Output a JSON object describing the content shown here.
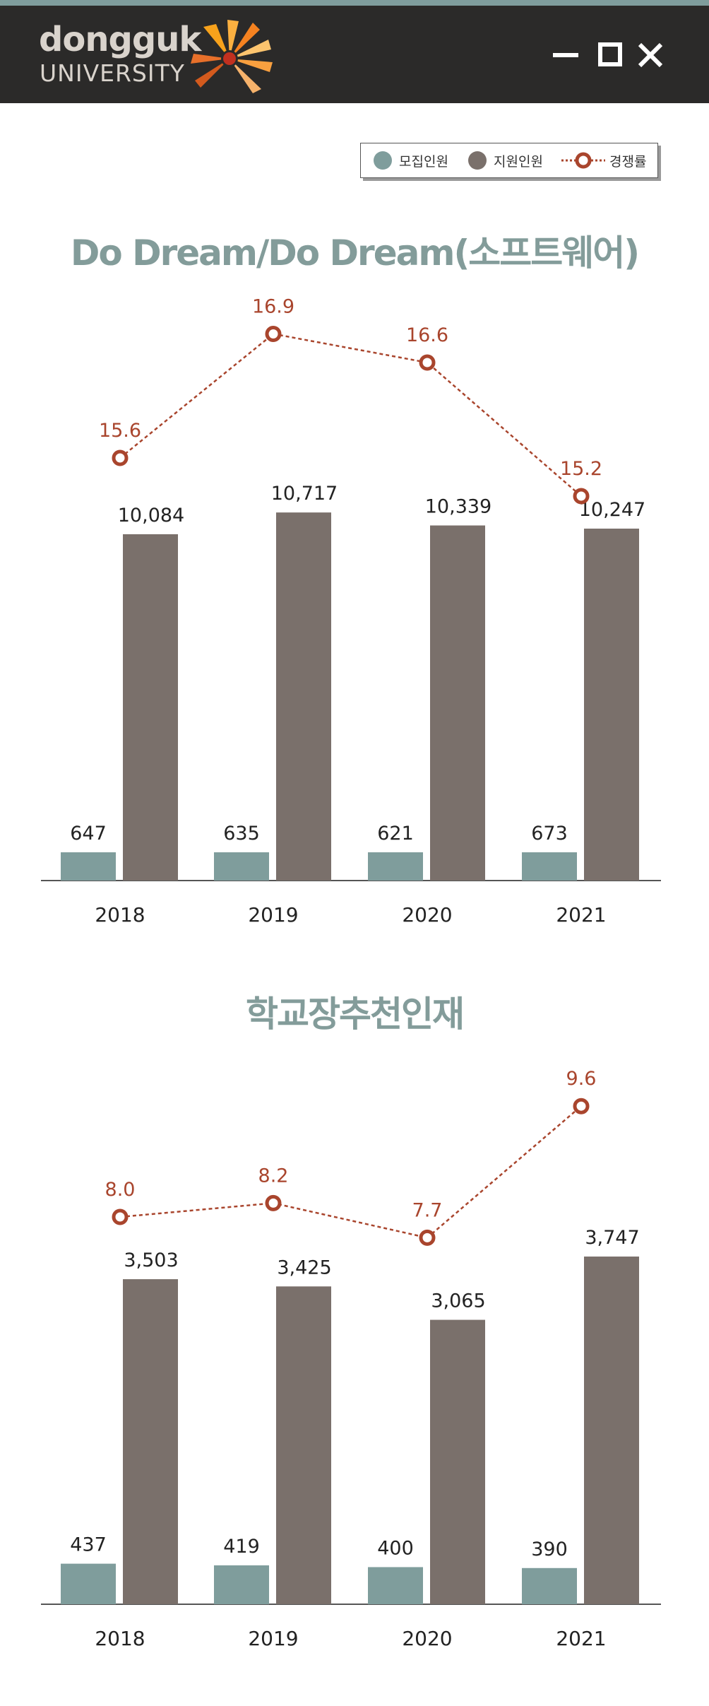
{
  "header": {
    "logo_line1": "dongguk",
    "logo_line2": "UNIVERSITY",
    "minimize_icon": "minimize-icon",
    "maximize_icon": "maximize-icon",
    "close_icon": "close-icon"
  },
  "legend": {
    "items": [
      {
        "label": "모집인원",
        "color": "#7f9d9c",
        "marker": "circle"
      },
      {
        "label": "지원인원",
        "color": "#7a706b",
        "marker": "circle"
      },
      {
        "label": "경쟁률",
        "color": "#a9452d",
        "marker": "ring-dotted-line"
      }
    ]
  },
  "colors": {
    "recruit": "#7f9d9c",
    "applicants": "#7a706b",
    "rate": "#a9452d",
    "title": "#839c9a",
    "header_bg": "#2b2a29"
  },
  "chart_data": [
    {
      "type": "bar",
      "title": "Do Dream/Do Dream(소프트웨어)",
      "categories": [
        "2018",
        "2019",
        "2020",
        "2021"
      ],
      "series": [
        {
          "name": "모집인원",
          "values": [
            647,
            635,
            621,
            673
          ],
          "labels": [
            "647",
            "635",
            "621",
            "673"
          ]
        },
        {
          "name": "지원인원",
          "values": [
            10084,
            10717,
            10339,
            10247
          ],
          "labels": [
            "10,084",
            "10,717",
            "10,339",
            "10,247"
          ]
        },
        {
          "name": "경쟁률",
          "type": "line",
          "values": [
            15.6,
            16.9,
            16.6,
            15.2
          ],
          "labels": [
            "15.6",
            "16.9",
            "16.6",
            "15.2"
          ]
        }
      ],
      "xlabel": "",
      "ylabel": "",
      "grid": false,
      "legend": "top-right"
    },
    {
      "type": "bar",
      "title": "학교장추천인재",
      "categories": [
        "2018",
        "2019",
        "2020",
        "2021"
      ],
      "series": [
        {
          "name": "모집인원",
          "values": [
            437,
            419,
            400,
            390
          ],
          "labels": [
            "437",
            "419",
            "400",
            "390"
          ]
        },
        {
          "name": "지원인원",
          "values": [
            3503,
            3425,
            3065,
            3747
          ],
          "labels": [
            "3,503",
            "3,425",
            "3,065",
            "3,747"
          ]
        },
        {
          "name": "경쟁률",
          "type": "line",
          "values": [
            8.0,
            8.2,
            7.7,
            9.6
          ],
          "labels": [
            "8.0",
            "8.2",
            "7.7",
            "9.6"
          ]
        }
      ],
      "xlabel": "",
      "ylabel": "",
      "grid": false,
      "legend": "top-right"
    }
  ]
}
